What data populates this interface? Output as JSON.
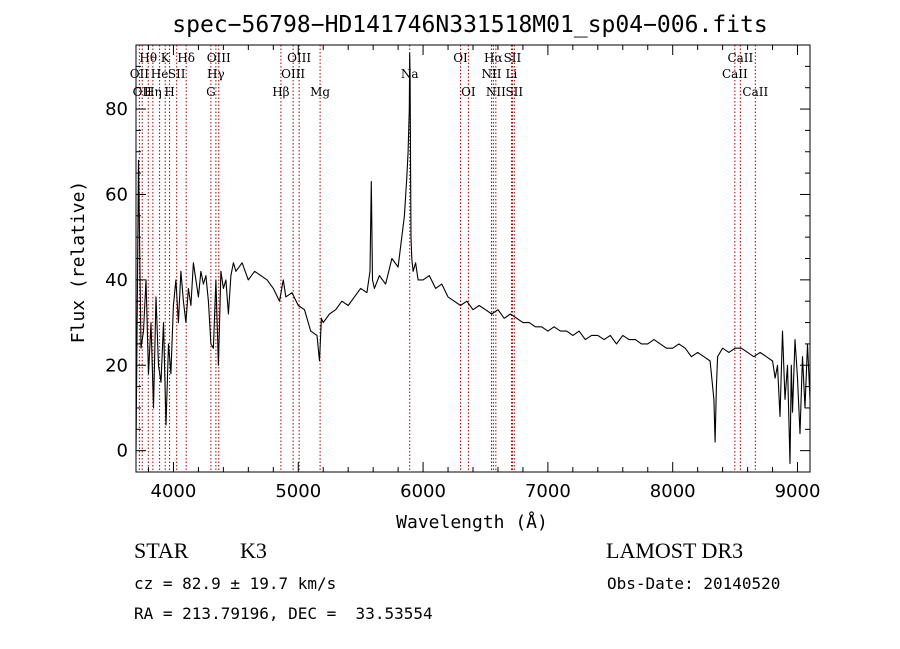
{
  "chart_data": {
    "type": "line",
    "title": "spec−56798−HD141746N331518M01_sp04−006.fits",
    "xlabel": "Wavelength (Å)",
    "ylabel": "Flux (relative)",
    "xlim": [
      3700,
      9100
    ],
    "ylim": [
      -5,
      95
    ],
    "xticks": [
      4000,
      5000,
      6000,
      7000,
      8000,
      9000
    ],
    "yticks": [
      0,
      20,
      40,
      60,
      80
    ],
    "line_color": "#000000",
    "marker_color": "#aa0000",
    "series": [
      {
        "name": "flux",
        "x": [
          3700,
          3720,
          3740,
          3760,
          3780,
          3800,
          3820,
          3840,
          3860,
          3880,
          3900,
          3920,
          3940,
          3960,
          3980,
          4000,
          4020,
          4040,
          4060,
          4080,
          4100,
          4120,
          4140,
          4160,
          4180,
          4200,
          4220,
          4240,
          4260,
          4280,
          4300,
          4320,
          4340,
          4360,
          4380,
          4400,
          4420,
          4440,
          4460,
          4480,
          4500,
          4550,
          4600,
          4650,
          4700,
          4750,
          4800,
          4850,
          4880,
          4900,
          4950,
          5000,
          5050,
          5100,
          5150,
          5170,
          5185,
          5200,
          5250,
          5300,
          5350,
          5400,
          5450,
          5500,
          5550,
          5575,
          5585,
          5595,
          5610,
          5650,
          5700,
          5750,
          5800,
          5850,
          5870,
          5880,
          5890,
          5893,
          5896,
          5900,
          5903,
          5910,
          5920,
          5940,
          5960,
          6000,
          6050,
          6100,
          6150,
          6200,
          6250,
          6300,
          6350,
          6400,
          6450,
          6500,
          6550,
          6600,
          6650,
          6700,
          6750,
          6800,
          6850,
          6900,
          6950,
          7000,
          7050,
          7100,
          7150,
          7200,
          7250,
          7300,
          7350,
          7400,
          7450,
          7500,
          7550,
          7600,
          7650,
          7700,
          7750,
          7800,
          7850,
          7900,
          7950,
          8000,
          8050,
          8100,
          8150,
          8200,
          8250,
          8300,
          8330,
          8340,
          8350,
          8360,
          8380,
          8400,
          8450,
          8500,
          8550,
          8600,
          8650,
          8700,
          8750,
          8800,
          8820,
          8840,
          8860,
          8880,
          8900,
          8920,
          8940,
          8950,
          8960,
          8980,
          9000,
          9020,
          9040,
          9060,
          9080,
          9100
        ],
        "y": [
          -1,
          68,
          24,
          28,
          40,
          18,
          30,
          10,
          36,
          20,
          16,
          30,
          6,
          25,
          18,
          34,
          40,
          30,
          42,
          35,
          30,
          38,
          34,
          44,
          40,
          36,
          42,
          39,
          41,
          35,
          25,
          24,
          40,
          20,
          42,
          38,
          40,
          32,
          41,
          44,
          42,
          44,
          40,
          42,
          41,
          40,
          38,
          35,
          40,
          36,
          37,
          34,
          33,
          28,
          27,
          21,
          31,
          30,
          32,
          33,
          35,
          34,
          36,
          38,
          37,
          42,
          63,
          40,
          38,
          41,
          39,
          45,
          43,
          55,
          64,
          70,
          80,
          93,
          88,
          65,
          50,
          45,
          42,
          44,
          40,
          40,
          41,
          38,
          39,
          36,
          35,
          34,
          35,
          33,
          34,
          33,
          32,
          33,
          31,
          32,
          31,
          30,
          30,
          29,
          29,
          28,
          29,
          28,
          28,
          27,
          28,
          26,
          27,
          27,
          26,
          27,
          25,
          27,
          26,
          26,
          25,
          25,
          26,
          25,
          24,
          24,
          25,
          24,
          22,
          23,
          22,
          21,
          12,
          2,
          15,
          22,
          23,
          24,
          23,
          24,
          24,
          23,
          22,
          23,
          22,
          21,
          17,
          20,
          8,
          28,
          12,
          20,
          -3,
          20,
          9,
          26,
          17,
          4,
          22,
          10,
          25,
          12
        ]
      }
    ],
    "line_markers": [
      {
        "wavelength": 3727,
        "label": "OII",
        "row": 2
      },
      {
        "wavelength": 3750,
        "label": "OII",
        "row": 3
      },
      {
        "wavelength": 3798,
        "label": "Hθ",
        "row": 1
      },
      {
        "wavelength": 3835,
        "label": "Hη",
        "row": 3
      },
      {
        "wavelength": 3889,
        "label": "He",
        "row": 2
      },
      {
        "wavelength": 3934,
        "label": "K",
        "row": 1
      },
      {
        "wavelength": 3969,
        "label": "H",
        "row": 3
      },
      {
        "wavelength": 4026,
        "label": "SII",
        "row": 2
      },
      {
        "wavelength": 4102,
        "label": "Hδ",
        "row": 1
      },
      {
        "wavelength": 4300,
        "label": "G",
        "row": 3
      },
      {
        "wavelength": 4340,
        "label": "Hγ",
        "row": 2
      },
      {
        "wavelength": 4363,
        "label": "OIII",
        "row": 1
      },
      {
        "wavelength": 4861,
        "label": "Hβ",
        "row": 3
      },
      {
        "wavelength": 4959,
        "label": "OIII",
        "row": 2
      },
      {
        "wavelength": 5007,
        "label": "OIII",
        "row": 1
      },
      {
        "wavelength": 5175,
        "label": "Mg",
        "row": 3
      },
      {
        "wavelength": 5893,
        "label": "Na",
        "row": 2
      },
      {
        "wavelength": 6300,
        "label": "OI",
        "row": 1
      },
      {
        "wavelength": 6363,
        "label": "OI",
        "row": 3
      },
      {
        "wavelength": 6548,
        "label": "NII",
        "row": 2
      },
      {
        "wavelength": 6563,
        "label": "Hα",
        "row": 1
      },
      {
        "wavelength": 6583,
        "label": "NII",
        "row": 3
      },
      {
        "wavelength": 6708,
        "label": "Li",
        "row": 2
      },
      {
        "wavelength": 6716,
        "label": "SII",
        "row": 1
      },
      {
        "wavelength": 6731,
        "label": "SII",
        "row": 3
      },
      {
        "wavelength": 8498,
        "label": "CaII",
        "row": 2
      },
      {
        "wavelength": 8542,
        "label": "CaII",
        "row": 1
      },
      {
        "wavelength": 8662,
        "label": "CaII",
        "row": 3
      }
    ]
  },
  "info": {
    "object_class": "STAR",
    "subclass": "K3",
    "survey": "LAMOST DR3",
    "redshift_text": "cz = 82.9 ± 19.7 km/s",
    "obs_date_text": "Obs-Date: 20140520",
    "coords_text": "RA = 213.79196, DEC =  33.53554"
  }
}
